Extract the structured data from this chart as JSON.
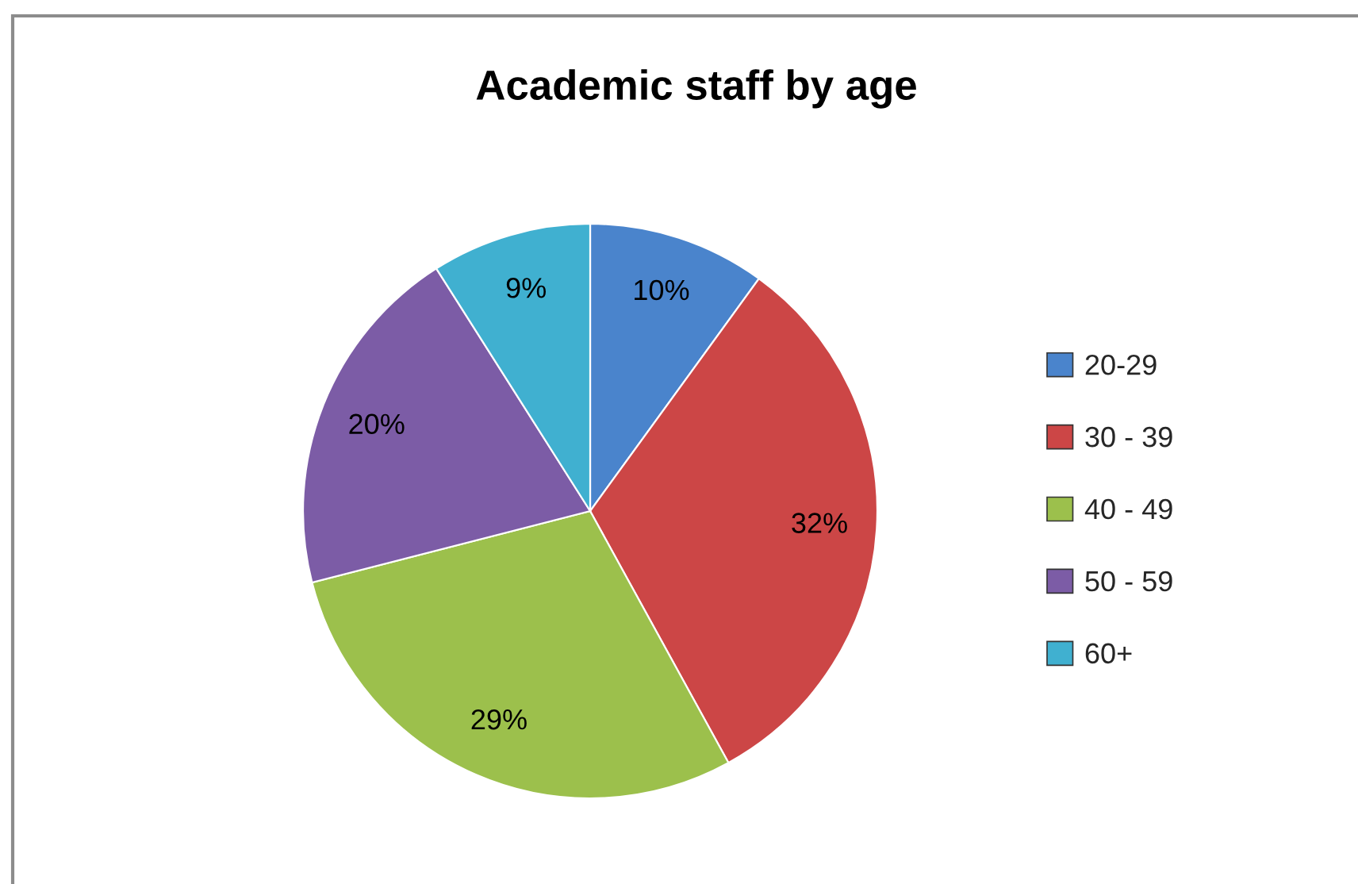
{
  "chart_data": {
    "type": "pie",
    "title": "Academic staff by age",
    "categories": [
      "20-29",
      "30 - 39",
      "40 - 49",
      "50 - 59",
      "60+"
    ],
    "values": [
      10,
      32,
      29,
      20,
      9
    ],
    "colors": [
      "#4a84cc",
      "#cc4646",
      "#9cc04c",
      "#7c5ca6",
      "#40b0d0"
    ],
    "value_labels": [
      "10%",
      "32%",
      "29%",
      "20%",
      "9%"
    ],
    "legend": "right"
  }
}
